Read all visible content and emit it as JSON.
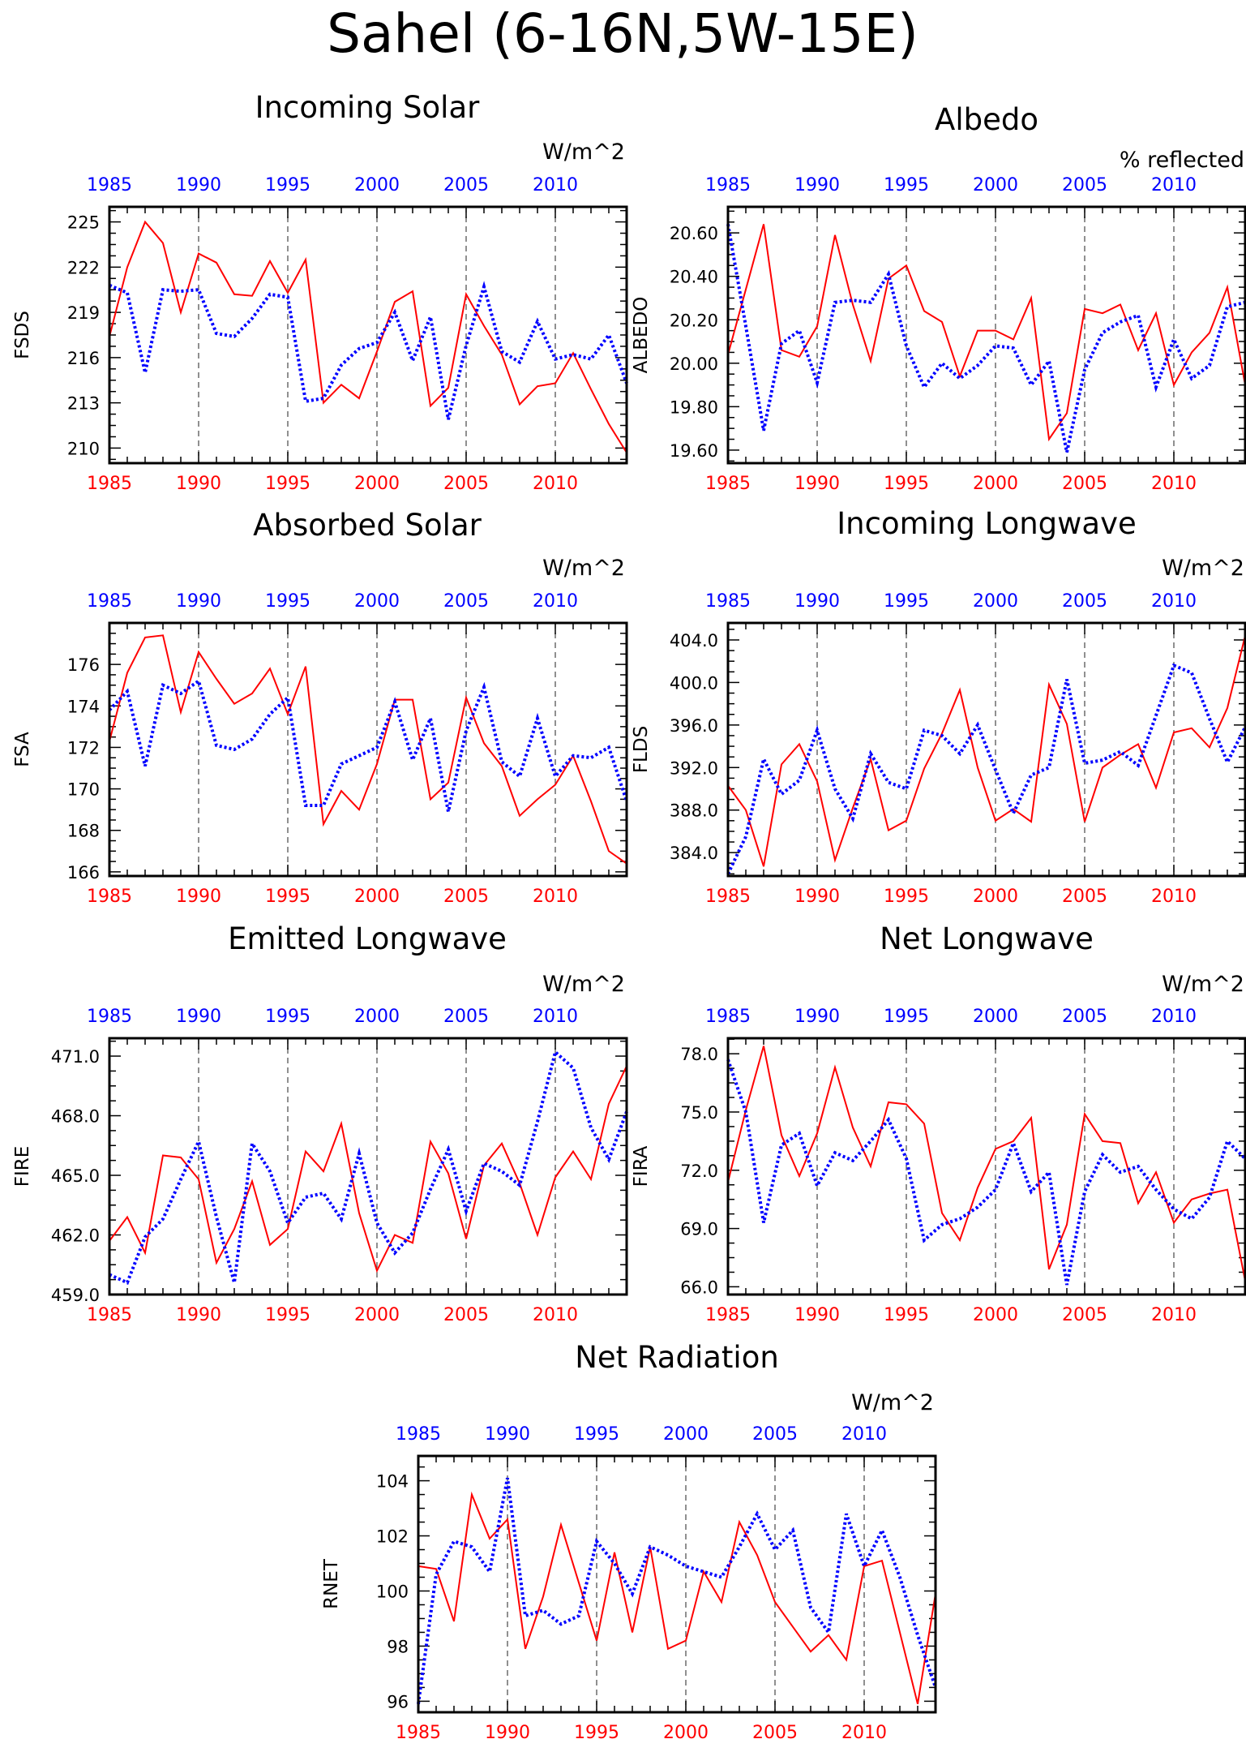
{
  "title": "Sahel (6-16N,5W-15E)",
  "chart_data": [
    {
      "type": "line",
      "title": "Incoming Solar",
      "units": "W/m^2",
      "ylabel": "FSDS",
      "x": [
        1985,
        1986,
        1987,
        1988,
        1989,
        1990,
        1991,
        1992,
        1993,
        1994,
        1995,
        1996,
        1997,
        1998,
        1999,
        2000,
        2001,
        2002,
        2003,
        2004,
        2005,
        2006,
        2007,
        2008,
        2009,
        2010,
        2011,
        2012,
        2013,
        2014
      ],
      "ylim": [
        209,
        226
      ],
      "yticks": [
        210,
        213,
        216,
        219,
        222,
        225
      ],
      "ytick_labels": [
        "210",
        "213",
        "216",
        "219",
        "222",
        "225"
      ],
      "xticks": [
        1985,
        1990,
        1995,
        2000,
        2005,
        2010
      ],
      "series": [
        {
          "color": "#ff0000",
          "style": "solid",
          "values": [
            217.4,
            222.0,
            225.0,
            223.6,
            219.0,
            222.9,
            222.3,
            220.2,
            220.1,
            222.4,
            220.3,
            222.5,
            213.0,
            214.2,
            213.3,
            216.4,
            219.7,
            220.4,
            212.8,
            214.0,
            220.2,
            218.1,
            216.2,
            212.9,
            214.1,
            214.3,
            216.3,
            213.9,
            211.6,
            209.7
          ]
        },
        {
          "color": "#0000ff",
          "style": "dotted",
          "values": [
            220.8,
            220.3,
            215.0,
            220.5,
            220.4,
            220.5,
            217.6,
            217.4,
            218.6,
            220.2,
            220.0,
            213.1,
            213.3,
            215.5,
            216.6,
            217.0,
            219.0,
            215.8,
            218.7,
            211.9,
            216.8,
            220.7,
            216.4,
            215.7,
            218.4,
            215.9,
            216.2,
            215.9,
            217.5,
            214.3
          ]
        }
      ]
    },
    {
      "type": "line",
      "title": "Albedo",
      "units": "% reflected",
      "ylabel": "ALBEDO",
      "x": [
        1985,
        1986,
        1987,
        1988,
        1989,
        1990,
        1991,
        1992,
        1993,
        1994,
        1995,
        1996,
        1997,
        1998,
        1999,
        2000,
        2001,
        2002,
        2003,
        2004,
        2005,
        2006,
        2007,
        2008,
        2009,
        2010,
        2011,
        2012,
        2013,
        2014
      ],
      "ylim": [
        19.54,
        20.72
      ],
      "yticks": [
        19.6,
        19.8,
        20.0,
        20.2,
        20.4,
        20.6
      ],
      "ytick_labels": [
        "19.60",
        "19.80",
        "20.00",
        "20.20",
        "20.40",
        "20.60"
      ],
      "xticks": [
        1985,
        1990,
        1995,
        2000,
        2005,
        2010
      ],
      "series": [
        {
          "color": "#ff0000",
          "style": "solid",
          "values": [
            20.04,
            20.34,
            20.64,
            20.06,
            20.03,
            20.17,
            20.59,
            20.27,
            20.01,
            20.39,
            20.45,
            20.24,
            20.19,
            19.94,
            20.15,
            20.15,
            20.11,
            20.3,
            19.65,
            19.77,
            20.25,
            20.23,
            20.27,
            20.06,
            20.23,
            19.9,
            20.05,
            20.14,
            20.35,
            19.9
          ]
        },
        {
          "color": "#0000ff",
          "style": "dotted",
          "values": [
            20.64,
            20.17,
            19.69,
            20.09,
            20.15,
            19.91,
            20.28,
            20.29,
            20.28,
            20.41,
            20.08,
            19.89,
            20.0,
            19.93,
            19.99,
            20.08,
            20.07,
            19.9,
            20.01,
            19.59,
            19.97,
            20.14,
            20.19,
            20.22,
            19.89,
            20.11,
            19.93,
            19.99,
            20.26,
            20.28
          ]
        }
      ]
    },
    {
      "type": "line",
      "title": "Absorbed Solar",
      "units": "W/m^2",
      "ylabel": "FSA",
      "x": [
        1985,
        1986,
        1987,
        1988,
        1989,
        1990,
        1991,
        1992,
        1993,
        1994,
        1995,
        1996,
        1997,
        1998,
        1999,
        2000,
        2001,
        2002,
        2003,
        2004,
        2005,
        2006,
        2007,
        2008,
        2009,
        2010,
        2011,
        2012,
        2013,
        2014
      ],
      "ylim": [
        165.8,
        178.0
      ],
      "yticks": [
        166,
        168,
        170,
        172,
        174,
        176
      ],
      "ytick_labels": [
        "166",
        "168",
        "170",
        "172",
        "174",
        "176"
      ],
      "xticks": [
        1985,
        1990,
        1995,
        2000,
        2005,
        2010
      ],
      "series": [
        {
          "color": "#ff0000",
          "style": "solid",
          "values": [
            172.3,
            175.6,
            177.3,
            177.4,
            173.7,
            176.6,
            175.3,
            174.1,
            174.6,
            175.8,
            173.6,
            175.9,
            168.3,
            169.9,
            169.0,
            171.2,
            174.3,
            174.3,
            169.5,
            170.3,
            174.4,
            172.2,
            171.1,
            168.7,
            169.5,
            170.2,
            171.6,
            169.4,
            167.0,
            166.4
          ]
        },
        {
          "color": "#0000ff",
          "style": "dotted",
          "values": [
            173.8,
            174.7,
            171.1,
            175.0,
            174.6,
            175.2,
            172.1,
            171.9,
            172.4,
            173.6,
            174.4,
            169.2,
            169.2,
            171.2,
            171.6,
            172.0,
            174.2,
            171.4,
            173.4,
            168.9,
            172.8,
            174.9,
            171.3,
            170.6,
            173.4,
            170.6,
            171.6,
            171.5,
            172.0,
            169.4
          ]
        }
      ]
    },
    {
      "type": "line",
      "title": "Incoming Longwave",
      "units": "W/m^2",
      "ylabel": "FLDS",
      "x": [
        1985,
        1986,
        1987,
        1988,
        1989,
        1990,
        1991,
        1992,
        1993,
        1994,
        1995,
        1996,
        1997,
        1998,
        1999,
        2000,
        2001,
        2002,
        2003,
        2004,
        2005,
        2006,
        2007,
        2008,
        2009,
        2010,
        2011,
        2012,
        2013,
        2014
      ],
      "ylim": [
        381.8,
        405.6
      ],
      "yticks": [
        384,
        388,
        392,
        396,
        400,
        404
      ],
      "ytick_labels": [
        "384.0",
        "388.0",
        "392.0",
        "396.0",
        "400.0",
        "404.0"
      ],
      "xticks": [
        1985,
        1990,
        1995,
        2000,
        2005,
        2010
      ],
      "series": [
        {
          "color": "#ff0000",
          "style": "solid",
          "values": [
            390.3,
            388.0,
            382.7,
            392.3,
            394.2,
            390.7,
            383.3,
            388.2,
            392.8,
            386.1,
            387.0,
            391.9,
            395.2,
            399.3,
            392.0,
            387.0,
            388.1,
            386.9,
            399.8,
            396.1,
            386.9,
            392.0,
            393.2,
            394.2,
            390.1,
            395.3,
            395.7,
            393.9,
            397.6,
            404.4
          ]
        },
        {
          "color": "#0000ff",
          "style": "dotted",
          "values": [
            382.0,
            385.5,
            392.8,
            389.5,
            390.8,
            395.5,
            390.0,
            387.2,
            393.3,
            390.6,
            390.0,
            395.5,
            395.0,
            393.3,
            396.0,
            391.8,
            387.7,
            391.3,
            392.0,
            400.3,
            392.4,
            392.7,
            393.5,
            392.2,
            396.9,
            401.6,
            400.9,
            396.6,
            392.5,
            395.8
          ]
        }
      ]
    },
    {
      "type": "line",
      "title": "Emitted Longwave",
      "units": "W/m^2",
      "ylabel": "FIRE",
      "x": [
        1985,
        1986,
        1987,
        1988,
        1989,
        1990,
        1991,
        1992,
        1993,
        1994,
        1995,
        1996,
        1997,
        1998,
        1999,
        2000,
        2001,
        2002,
        2003,
        2004,
        2005,
        2006,
        2007,
        2008,
        2009,
        2010,
        2011,
        2012,
        2013,
        2014
      ],
      "ylim": [
        459.0,
        471.9
      ],
      "yticks": [
        459,
        462,
        465,
        468,
        471
      ],
      "ytick_labels": [
        "459.0",
        "462.0",
        "465.0",
        "468.0",
        "471.0"
      ],
      "xticks": [
        1985,
        1990,
        1995,
        2000,
        2005,
        2010
      ],
      "series": [
        {
          "color": "#ff0000",
          "style": "solid",
          "values": [
            461.7,
            462.9,
            461.1,
            466.0,
            465.9,
            464.8,
            460.6,
            462.3,
            464.7,
            461.5,
            462.3,
            466.2,
            465.2,
            467.6,
            463.1,
            460.2,
            462.0,
            461.6,
            466.7,
            465.1,
            461.8,
            465.5,
            466.6,
            464.6,
            462.0,
            464.9,
            466.2,
            464.8,
            468.6,
            470.5
          ]
        },
        {
          "color": "#0000ff",
          "style": "dotted",
          "values": [
            460.0,
            459.6,
            461.9,
            462.8,
            464.8,
            466.7,
            462.9,
            459.6,
            466.6,
            465.2,
            462.6,
            463.9,
            464.1,
            462.8,
            466.1,
            462.6,
            461.1,
            462.1,
            464.3,
            466.3,
            463.2,
            465.6,
            465.2,
            464.5,
            467.7,
            471.2,
            470.4,
            467.4,
            465.8,
            468.2
          ]
        }
      ]
    },
    {
      "type": "line",
      "title": "Net Longwave",
      "units": "W/m^2",
      "ylabel": "FIRA",
      "x": [
        1985,
        1986,
        1987,
        1988,
        1989,
        1990,
        1991,
        1992,
        1993,
        1994,
        1995,
        1996,
        1997,
        1998,
        1999,
        2000,
        2001,
        2002,
        2003,
        2004,
        2005,
        2006,
        2007,
        2008,
        2009,
        2010,
        2011,
        2012,
        2013,
        2014
      ],
      "ylim": [
        65.6,
        78.8
      ],
      "yticks": [
        66,
        69,
        72,
        75,
        78
      ],
      "ytick_labels": [
        "66.0",
        "69.0",
        "72.0",
        "75.0",
        "78.0"
      ],
      "xticks": [
        1985,
        1990,
        1995,
        2000,
        2005,
        2010
      ],
      "series": [
        {
          "color": "#ff0000",
          "style": "solid",
          "values": [
            71.4,
            75.1,
            78.4,
            73.8,
            71.7,
            73.9,
            77.3,
            74.2,
            72.2,
            75.5,
            75.4,
            74.4,
            69.8,
            68.4,
            71.1,
            73.1,
            73.5,
            74.7,
            66.9,
            69.2,
            74.9,
            73.5,
            73.4,
            70.3,
            71.9,
            69.3,
            70.5,
            70.8,
            71.0,
            66.3
          ]
        },
        {
          "color": "#0000ff",
          "style": "dotted",
          "values": [
            77.7,
            75.0,
            69.3,
            73.3,
            73.9,
            71.2,
            72.9,
            72.5,
            73.5,
            74.6,
            72.6,
            68.4,
            69.2,
            69.5,
            70.1,
            71.0,
            73.4,
            70.9,
            71.9,
            66.1,
            70.9,
            72.8,
            71.9,
            72.2,
            71.0,
            70.0,
            69.5,
            70.6,
            73.5,
            72.6
          ]
        }
      ]
    },
    {
      "type": "line",
      "title": "Net Radiation",
      "units": "W/m^2",
      "ylabel": "RNET",
      "x": [
        1985,
        1986,
        1987,
        1988,
        1989,
        1990,
        1991,
        1992,
        1993,
        1994,
        1995,
        1996,
        1997,
        1998,
        1999,
        2000,
        2001,
        2002,
        2003,
        2004,
        2005,
        2006,
        2007,
        2008,
        2009,
        2010,
        2011,
        2012,
        2013,
        2014
      ],
      "ylim": [
        95.6,
        104.9
      ],
      "yticks": [
        96,
        98,
        100,
        102,
        104
      ],
      "ytick_labels": [
        "96",
        "98",
        "100",
        "102",
        "104"
      ],
      "xticks": [
        1985,
        1990,
        1995,
        2000,
        2005,
        2010
      ],
      "series": [
        {
          "color": "#ff0000",
          "style": "solid",
          "values": [
            100.9,
            100.8,
            98.9,
            103.5,
            101.9,
            102.6,
            97.9,
            99.8,
            102.4,
            100.3,
            98.2,
            101.4,
            98.5,
            101.6,
            97.9,
            98.2,
            100.7,
            99.6,
            102.5,
            101.3,
            99.6,
            98.7,
            97.8,
            98.4,
            97.5,
            100.9,
            101.1,
            98.5,
            95.9,
            99.9
          ]
        },
        {
          "color": "#0000ff",
          "style": "dotted",
          "values": [
            95.9,
            100.6,
            101.8,
            101.6,
            100.7,
            104.1,
            99.1,
            99.3,
            98.8,
            99.1,
            101.8,
            101.0,
            99.9,
            101.6,
            101.3,
            100.9,
            100.7,
            100.5,
            101.6,
            102.8,
            101.5,
            102.2,
            99.4,
            98.5,
            102.8,
            100.9,
            102.2,
            100.5,
            98.4,
            96.5
          ]
        }
      ]
    }
  ]
}
